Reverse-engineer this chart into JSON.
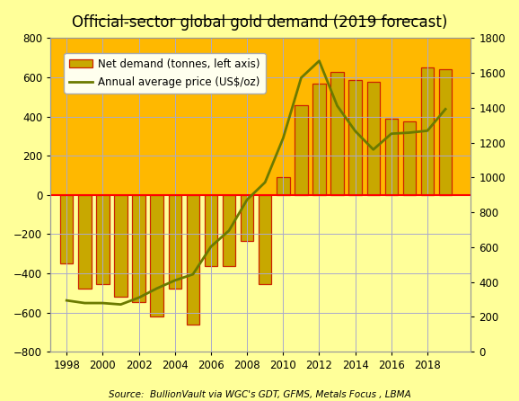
{
  "title": "Official-sector global gold demand (2019 forecast)",
  "source_text": "Source:  BullionVault via WGC's GDT, GFMS, Metals Focus , LBMA",
  "years": [
    1998,
    1999,
    2000,
    2001,
    2002,
    2003,
    2004,
    2005,
    2006,
    2007,
    2008,
    2009,
    2010,
    2011,
    2012,
    2013,
    2014,
    2015,
    2016,
    2017,
    2018,
    2019
  ],
  "bar_values": [
    -350,
    -477,
    -457,
    -520,
    -547,
    -620,
    -479,
    -663,
    -365,
    -365,
    -235,
    -455,
    90,
    457,
    569,
    625,
    584,
    577,
    390,
    375,
    651,
    641
  ],
  "price_values": [
    294,
    279,
    279,
    271,
    310,
    363,
    409,
    444,
    603,
    695,
    872,
    972,
    1225,
    1572,
    1669,
    1411,
    1266,
    1160,
    1251,
    1257,
    1268,
    1392
  ],
  "bar_color": "#C8A800",
  "bar_edge_color": "#CC2200",
  "line_color": "#6B7A00",
  "zero_line_color": "#FF0000",
  "background_color": "#FFFF99",
  "top_background_color": "#FFB800",
  "bottom_background_color": "#FFFF99",
  "legend_background": "#FFFFEE",
  "ylim_left": [
    -800,
    800
  ],
  "ylim_right": [
    0,
    1800
  ],
  "legend_labels": [
    "Net demand (tonnes, left axis)",
    "Annual average price (US$/oz)"
  ],
  "grid_color": "#AAAACC",
  "title_fontsize": 12,
  "xticks": [
    1998,
    2000,
    2002,
    2004,
    2006,
    2008,
    2010,
    2012,
    2014,
    2016,
    2018
  ],
  "yticks_left": [
    -800,
    -600,
    -400,
    -200,
    0,
    200,
    400,
    600,
    800
  ],
  "yticks_right": [
    0,
    200,
    400,
    600,
    800,
    1000,
    1200,
    1400,
    1600,
    1800
  ],
  "xlim": [
    1997.1,
    2020.4
  ]
}
